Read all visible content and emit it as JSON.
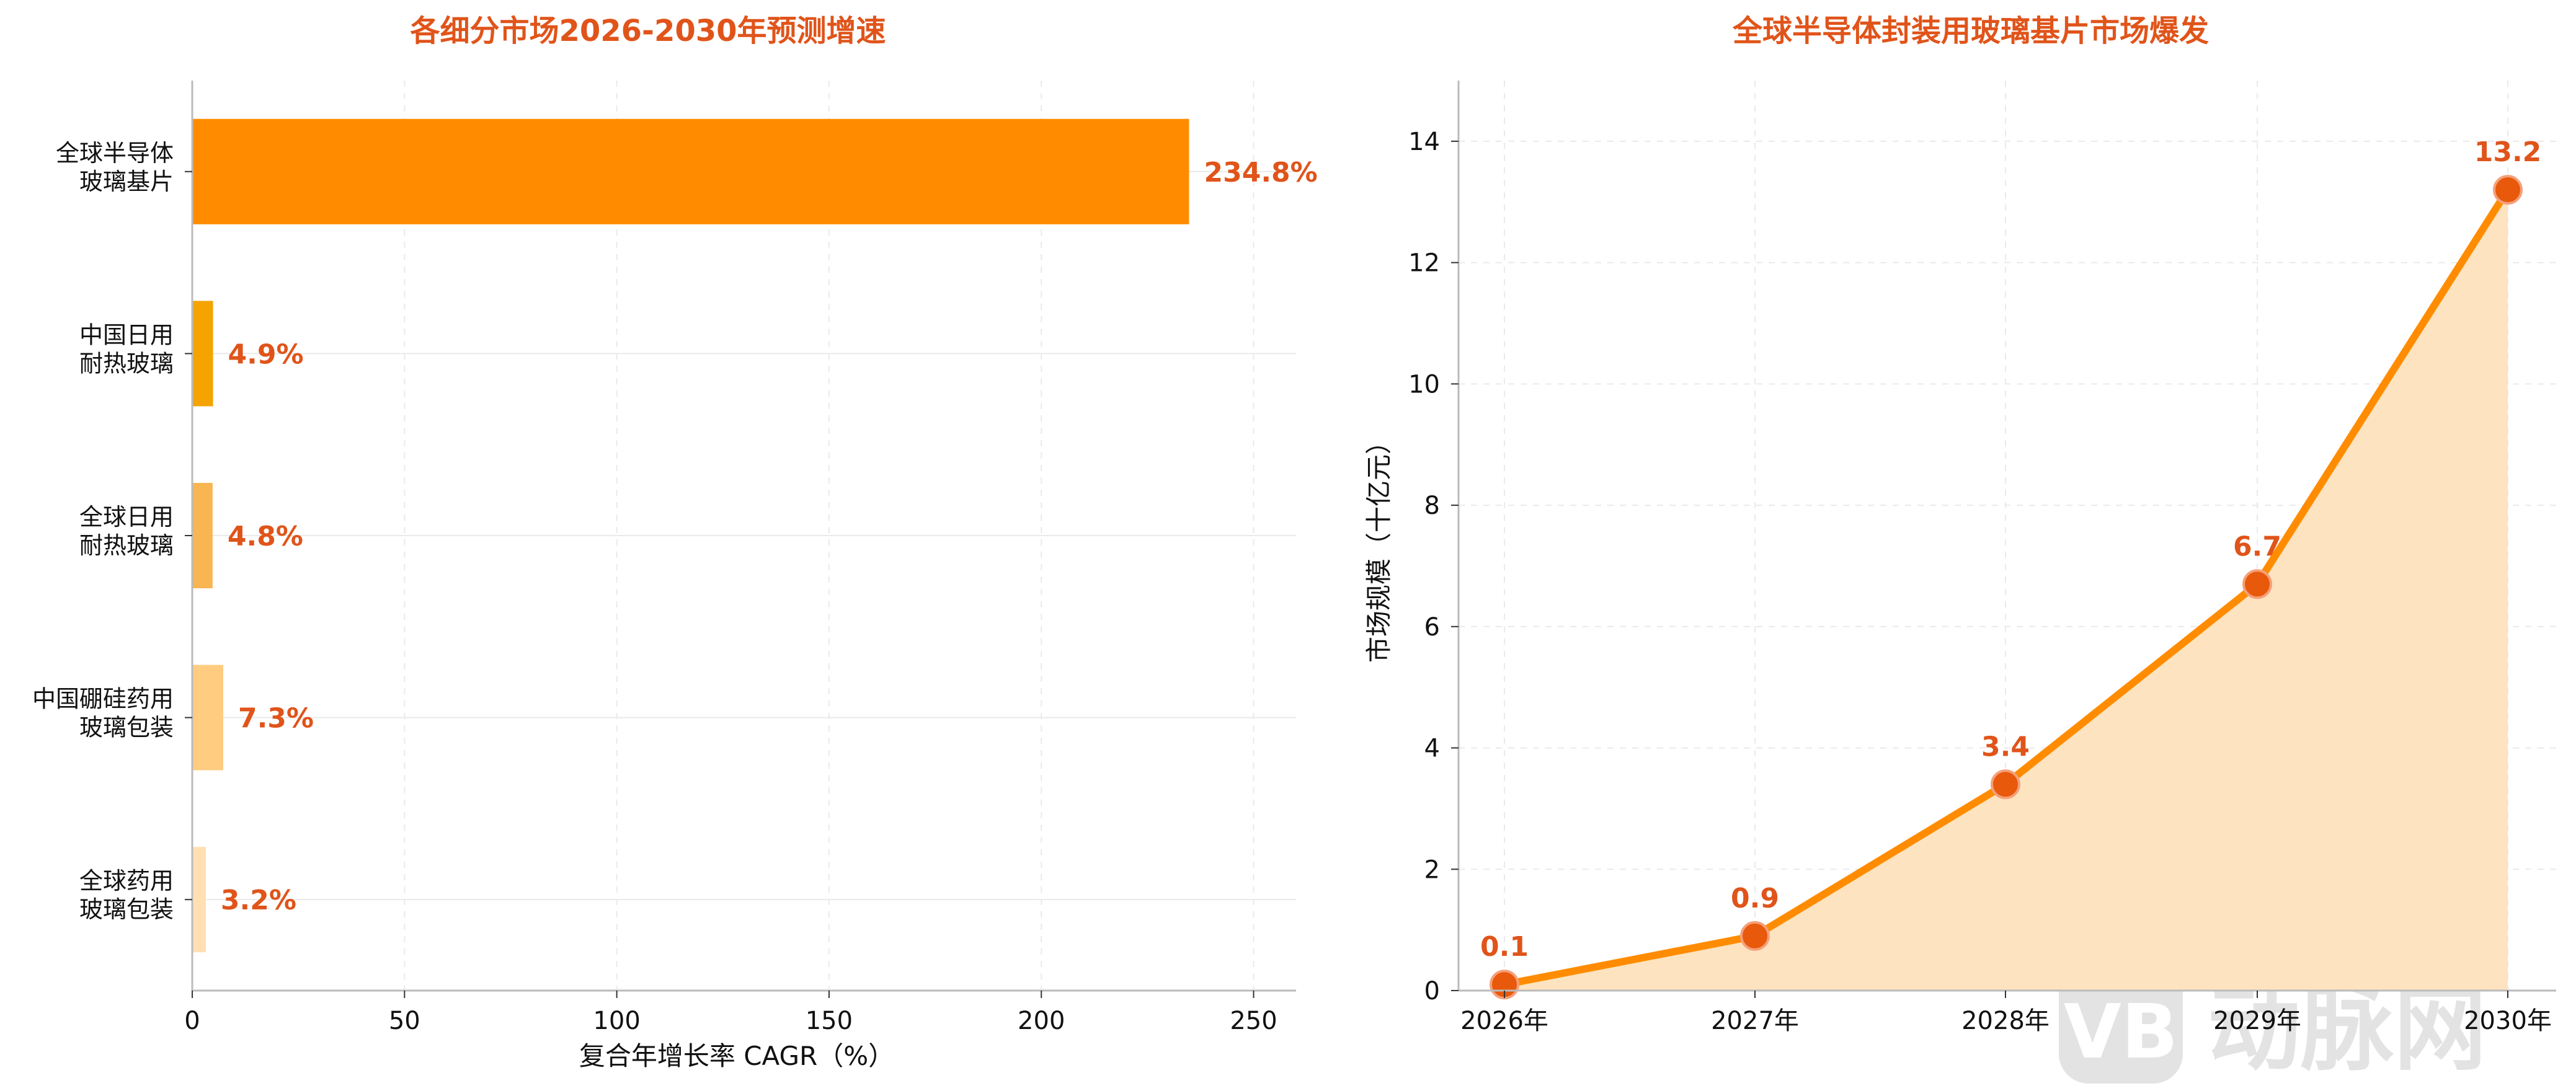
{
  "colors": {
    "title": "#E0541A",
    "label": "#E0541A",
    "line": "#FF8C00",
    "fill": "#FDE3BF",
    "marker": "#E8590C",
    "axis": "#BBBBBB",
    "grid": "#EAEAEA",
    "watermark": "#E3E3E3"
  },
  "watermark": {
    "logo_icon": "vb-logo-icon",
    "text": "动脉网"
  },
  "chart_data": [
    {
      "type": "bar",
      "orientation": "horizontal",
      "title": "各细分市场2026-2030年预测增速",
      "xlabel": "复合年增长率 CAGR（%）",
      "ylabel": "",
      "xlim": [
        0,
        260
      ],
      "xticks": [
        0,
        50,
        100,
        150,
        200,
        250
      ],
      "grid": true,
      "categories": [
        [
          "全球半导体",
          "玻璃基片"
        ],
        [
          "中国日用",
          "耐热玻璃"
        ],
        [
          "全球日用",
          "耐热玻璃"
        ],
        [
          "中国硼硅药用",
          "玻璃包装"
        ],
        [
          "全球药用",
          "玻璃包装"
        ]
      ],
      "values": [
        234.8,
        4.9,
        4.8,
        7.3,
        3.2
      ],
      "value_labels": [
        "234.8%",
        "4.9%",
        "4.8%",
        "7.3%",
        "3.2%"
      ],
      "bar_colors": [
        "#FF8C00",
        "#F5A300",
        "#F8B552",
        "#FFCC80",
        "#FFE0B2"
      ]
    },
    {
      "type": "area",
      "title": "全球半导体封装用玻璃基片市场爆发",
      "xlabel": "",
      "ylabel": "市场规模（十亿元）",
      "ylim": [
        0,
        15
      ],
      "yticks": [
        0,
        2,
        4,
        6,
        8,
        10,
        12,
        14
      ],
      "grid": true,
      "x": [
        "2026年",
        "2027年",
        "2028年",
        "2029年",
        "2030年"
      ],
      "values": [
        0.1,
        0.9,
        3.4,
        6.7,
        13.2
      ],
      "value_labels": [
        "0.1",
        "0.9",
        "3.4",
        "6.7",
        "13.2"
      ]
    }
  ]
}
